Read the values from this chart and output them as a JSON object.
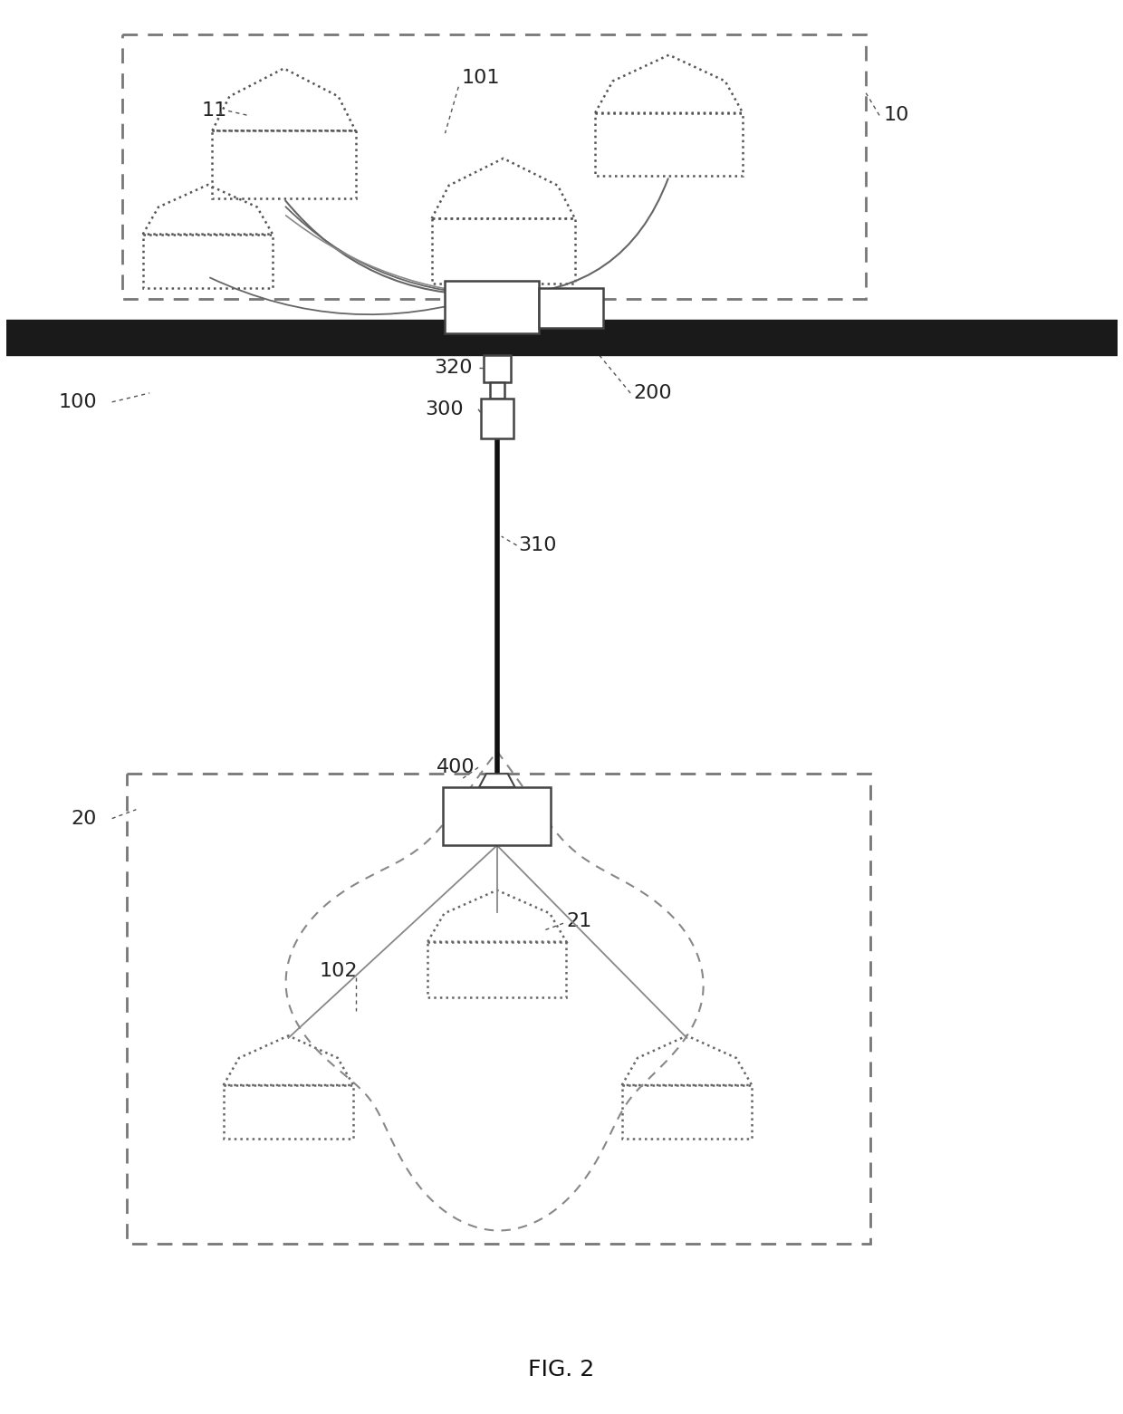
{
  "fig_width": 12.4,
  "fig_height": 15.61,
  "bg_color": "#ffffff",
  "title": "FIG. 2",
  "title_fontsize": 18,
  "label_fontsize": 16
}
